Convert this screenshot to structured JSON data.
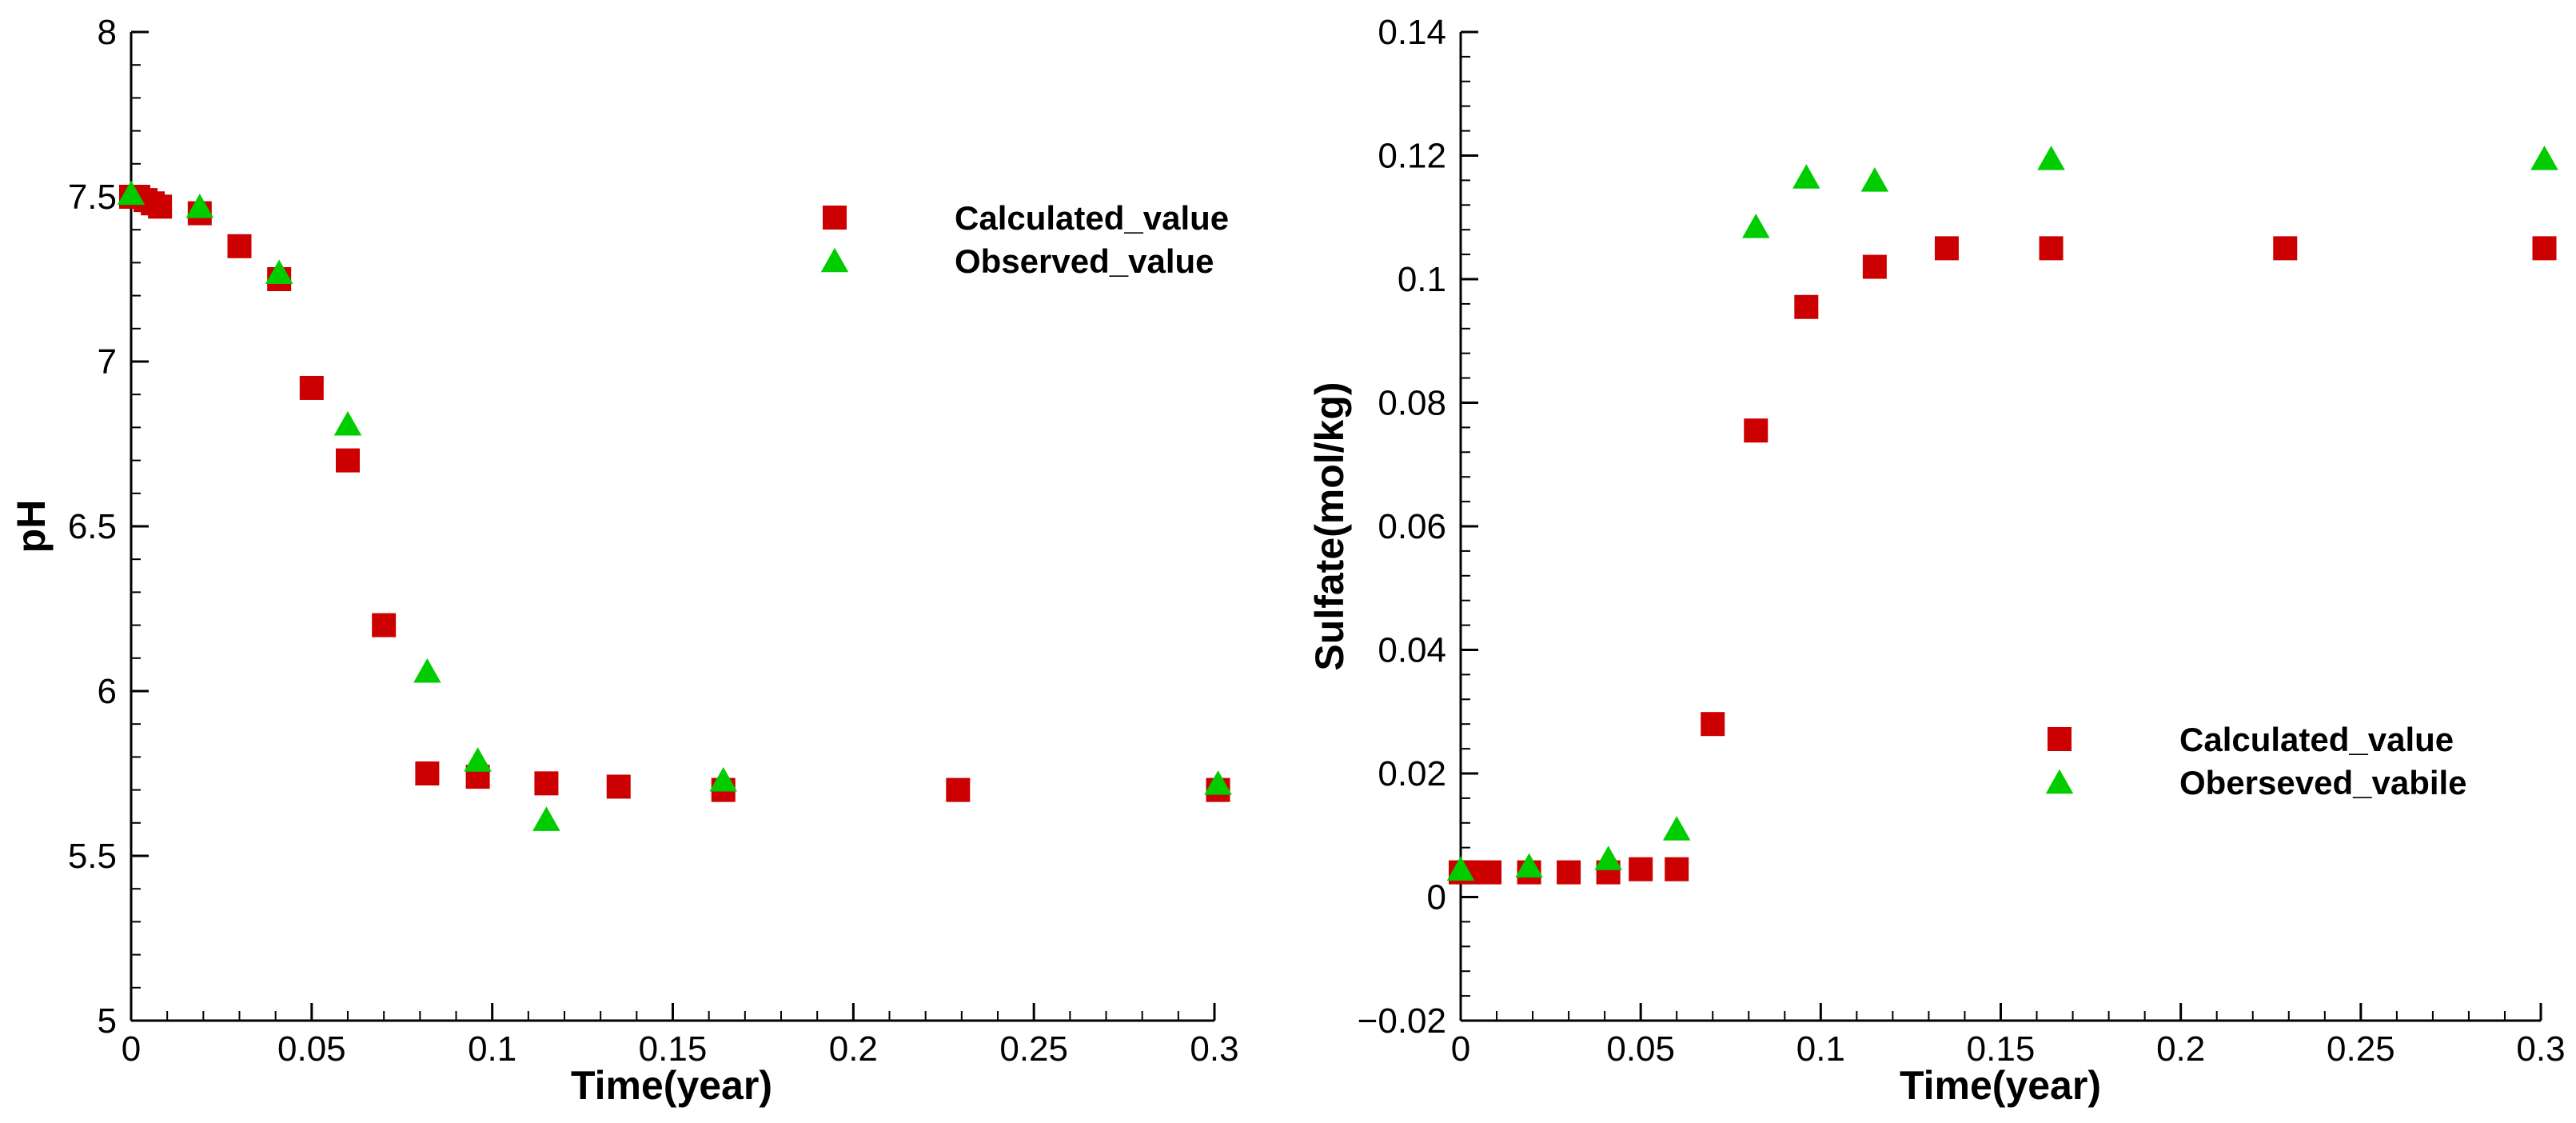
{
  "colors": {
    "calculated": "#cc0000",
    "observed": "#00cc00",
    "axis": "#000000"
  },
  "chart_data": [
    {
      "type": "scatter",
      "title": "",
      "xlabel": "Time(year)",
      "ylabel": "pH",
      "xlim": [
        0,
        0.3
      ],
      "ylim": [
        5,
        8
      ],
      "xticks": [
        0,
        0.05,
        0.1,
        0.15,
        0.2,
        0.25,
        0.3
      ],
      "xtick_labels": [
        "0",
        "0.05",
        "0.1",
        "0.15",
        "0.2",
        "0.25",
        "0.3"
      ],
      "yticks": [
        5,
        5.5,
        6,
        6.5,
        7,
        7.5,
        8
      ],
      "ytick_labels": [
        "5",
        "5.5",
        "6",
        "6.5",
        "7",
        "7.5",
        "8"
      ],
      "legend_position": "upper-right",
      "series": [
        {
          "name": "Calculated_value",
          "marker": "square",
          "x": [
            0.0,
            0.002,
            0.004,
            0.006,
            0.008,
            0.019,
            0.03,
            0.041,
            0.05,
            0.06,
            0.07,
            0.082,
            0.096,
            0.115,
            0.135,
            0.164,
            0.229,
            0.301
          ],
          "y": [
            7.5,
            7.5,
            7.49,
            7.48,
            7.47,
            7.45,
            7.35,
            7.25,
            6.92,
            6.7,
            6.2,
            5.75,
            5.74,
            5.72,
            5.71,
            5.7,
            5.7,
            5.7
          ]
        },
        {
          "name": "Observed_value",
          "marker": "triangle",
          "x": [
            0.0,
            0.019,
            0.041,
            0.06,
            0.082,
            0.096,
            0.115,
            0.164,
            0.301
          ],
          "y": [
            7.51,
            7.47,
            7.27,
            6.81,
            6.06,
            5.79,
            5.61,
            5.73,
            5.72
          ]
        }
      ]
    },
    {
      "type": "scatter",
      "title": "",
      "xlabel": "Time(year)",
      "ylabel": "Sulfate(mol/kg)",
      "xlim": [
        0,
        0.3
      ],
      "ylim": [
        -0.02,
        0.14
      ],
      "xticks": [
        0,
        0.05,
        0.1,
        0.15,
        0.2,
        0.25,
        0.3
      ],
      "xtick_labels": [
        "0",
        "0.05",
        "0.1",
        "0.15",
        "0.2",
        "0.25",
        "0.3"
      ],
      "yticks": [
        -0.02,
        0,
        0.02,
        0.04,
        0.06,
        0.08,
        0.1,
        0.12,
        0.14
      ],
      "ytick_labels": [
        "−0.02",
        "0",
        "0.02",
        "0.04",
        "0.06",
        "0.08",
        "0.1",
        "0.12",
        "0.14"
      ],
      "legend_position": "lower-right",
      "series": [
        {
          "name": "Calculated_value",
          "marker": "square",
          "x": [
            0.0,
            0.002,
            0.008,
            0.019,
            0.03,
            0.041,
            0.05,
            0.06,
            0.07,
            0.082,
            0.096,
            0.115,
            0.135,
            0.164,
            0.229,
            0.301
          ],
          "y": [
            0.004,
            0.004,
            0.004,
            0.004,
            0.004,
            0.004,
            0.0045,
            0.0045,
            0.028,
            0.0755,
            0.0955,
            0.102,
            0.105,
            0.105,
            0.105,
            0.105
          ]
        },
        {
          "name": "Oberseved_vabile",
          "marker": "triangle",
          "x": [
            0.0,
            0.019,
            0.041,
            0.06,
            0.082,
            0.096,
            0.115,
            0.164,
            0.301
          ],
          "y": [
            0.0045,
            0.005,
            0.0062,
            0.011,
            0.1085,
            0.1165,
            0.116,
            0.1195,
            0.1195
          ]
        }
      ]
    }
  ]
}
